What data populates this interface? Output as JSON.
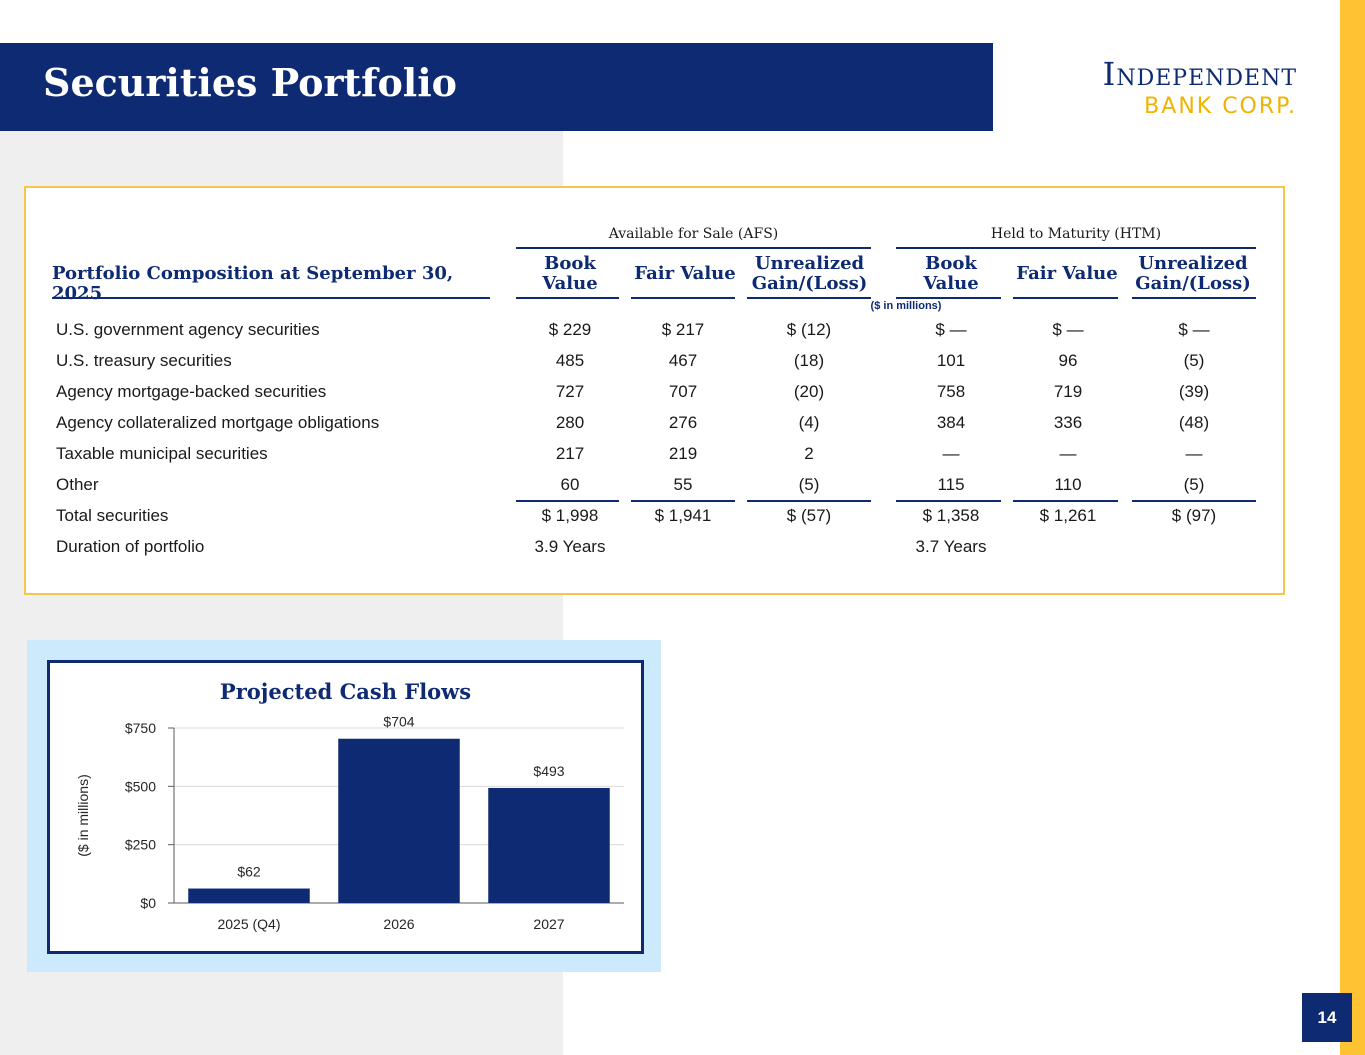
{
  "header": {
    "title": "Securities Portfolio",
    "logo_line1": "Independent",
    "logo_line2": "BANK CORP."
  },
  "table": {
    "row_header": "Portfolio Composition at September 30, 2025",
    "groups": [
      "Available for Sale (AFS)",
      "Held to Maturity (HTM)"
    ],
    "columns": [
      {
        "line1": "Book",
        "line2": "Value"
      },
      {
        "line1": "Fair Value",
        "line2": ""
      },
      {
        "line1": "Unrealized",
        "line2": "Gain/(Loss)"
      },
      {
        "line1": "Book",
        "line2": "Value"
      },
      {
        "line1": "Fair Value",
        "line2": ""
      },
      {
        "line1": "Unrealized",
        "line2": "Gain/(Loss)"
      }
    ],
    "units_note": "($ in millions)",
    "rows": [
      {
        "label": "U.S. government agency securities",
        "values": [
          "$ 229",
          "$ 217",
          "$ (12)",
          "$ —",
          "$ —",
          "$ —"
        ]
      },
      {
        "label": "U.S. treasury securities",
        "values": [
          "485",
          "467",
          "(18)",
          "101",
          "96",
          "(5)"
        ]
      },
      {
        "label": "Agency mortgage-backed securities",
        "values": [
          "727",
          "707",
          "(20)",
          "758",
          "719",
          "(39)"
        ]
      },
      {
        "label": "Agency collateralized mortgage obligations",
        "values": [
          "280",
          "276",
          "(4)",
          "384",
          "336",
          "(48)"
        ]
      },
      {
        "label": "Taxable municipal securities",
        "values": [
          "217",
          "219",
          "2",
          "—",
          "—",
          "—"
        ]
      },
      {
        "label": "Other",
        "values": [
          "60",
          "55",
          "(5)",
          "115",
          "110",
          "(5)"
        ]
      },
      {
        "label": "Total securities",
        "values": [
          "$ 1,998",
          "$ 1,941",
          "$ (57)",
          "$ 1,358",
          "$ 1,261",
          "$ (97)"
        ]
      },
      {
        "label": "Duration of portfolio",
        "values": [
          "3.9 Years",
          "",
          "",
          "3.7 Years",
          "",
          ""
        ]
      }
    ]
  },
  "chart_data": {
    "type": "bar",
    "title": "Projected Cash Flows",
    "categories": [
      "2025 (Q4)",
      "2026",
      "2027"
    ],
    "values": [
      62,
      704,
      493
    ],
    "data_labels": [
      "$62",
      "$704",
      "$493"
    ],
    "ylabel": "($ in millions)",
    "xlabel": "",
    "yticks": [
      0,
      250,
      500,
      750
    ],
    "ytick_labels": [
      "$0",
      "$250",
      "$500",
      "$750"
    ],
    "ylim": [
      0,
      750
    ],
    "bar_color": "#0d2a72"
  },
  "footer": {
    "page_number": "14"
  },
  "colors": {
    "navy": "#0d2a72",
    "gold": "#fec233",
    "light_blue": "#cdeafd"
  }
}
